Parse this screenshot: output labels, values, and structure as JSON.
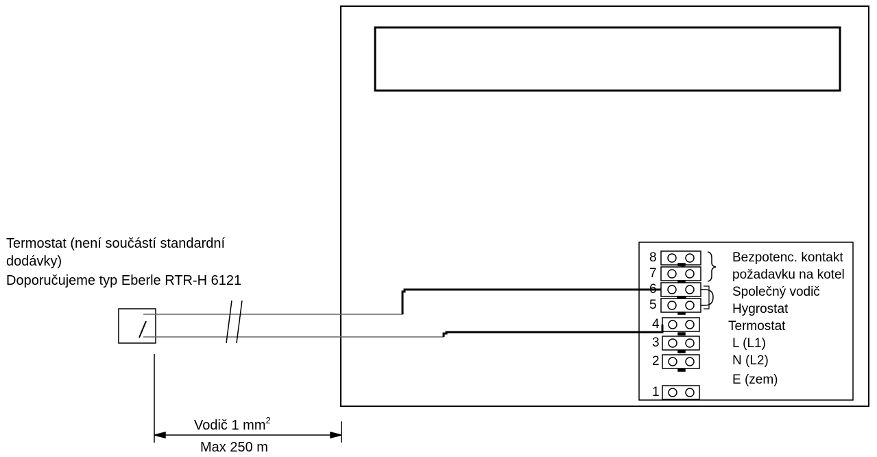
{
  "thermostat": {
    "line1": "Termostat (není součástí standardní",
    "line2": "dodávky)",
    "line3": "Doporučujeme typ Eberle RTR-H 6121"
  },
  "cable": {
    "label": "Vodič 1 mm",
    "label_sup": "2",
    "max_length": "Max 250 m"
  },
  "terminals": [
    {
      "num": "8",
      "label": "Bezpotenc. kontakt"
    },
    {
      "num": "7",
      "label": "požadavku na kotel"
    },
    {
      "num": "6",
      "label": "Společný vodič"
    },
    {
      "num": "5",
      "label": "Hygrostat"
    },
    {
      "num": "4",
      "label": "Termostat"
    },
    {
      "num": "3",
      "label": "L (L1)"
    },
    {
      "num": "2",
      "label": "N (L2)"
    },
    {
      "num": "1",
      "label": "E (zem)"
    }
  ]
}
